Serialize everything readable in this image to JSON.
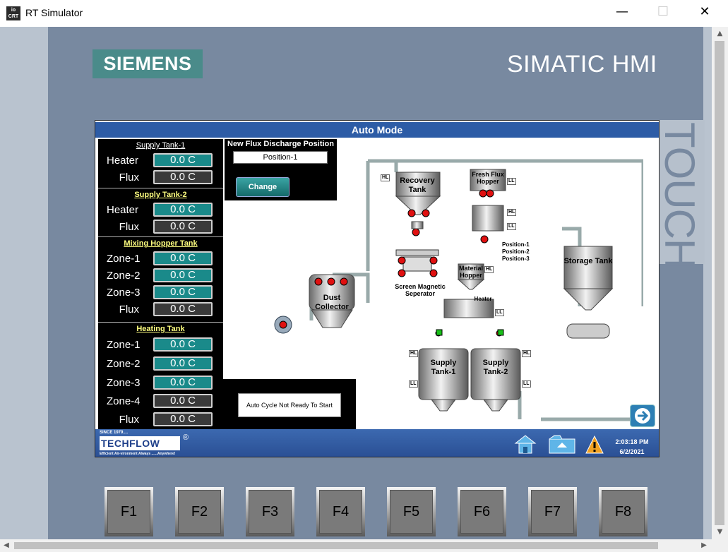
{
  "window": {
    "title": "RT Simulator",
    "icon_text": "ioCRT",
    "minimize": "—",
    "maximize": "☐",
    "close": "✕"
  },
  "brand": {
    "siemens": "SIEMENS",
    "simatic": "SIMATIC HMI",
    "touch": "TOUCH"
  },
  "screen": {
    "title": "Auto Mode",
    "sections": [
      {
        "heading": "Supply Tank-1",
        "rows": [
          {
            "label": "Heater",
            "value": "0.0 C",
            "style": "teal"
          },
          {
            "label": "Flux",
            "value": "0.0 C",
            "style": "gray"
          }
        ]
      },
      {
        "heading": "Supply Tank-2",
        "rows": [
          {
            "label": "Heater",
            "value": "0.0 C",
            "style": "teal"
          },
          {
            "label": "Flux",
            "value": "0.0 C",
            "style": "gray"
          }
        ]
      },
      {
        "heading": "Mixing Hopper Tank",
        "rows": [
          {
            "label": "Zone-1",
            "value": "0.0 C",
            "style": "teal"
          },
          {
            "label": "Zone-2",
            "value": "0.0 C",
            "style": "teal"
          },
          {
            "label": "Zone-3",
            "value": "0.0 C",
            "style": "teal"
          },
          {
            "label": "Flux",
            "value": "0.0 C",
            "style": "gray"
          }
        ]
      },
      {
        "heading": "Heating Tank",
        "rows": [
          {
            "label": "Zone-1",
            "value": "0.0 C",
            "style": "teal"
          },
          {
            "label": "Zone-2",
            "value": "0.0 C",
            "style": "teal"
          },
          {
            "label": "Zone-3",
            "value": "0.0 C",
            "style": "teal"
          },
          {
            "label": "Zone-4",
            "value": "0.0 C",
            "style": "gray"
          },
          {
            "label": "Flux",
            "value": "0.0 C",
            "style": "gray"
          }
        ]
      }
    ],
    "flux_discharge": {
      "title": "New Flux Discharge Position",
      "position": "Position-1",
      "button": "Change"
    },
    "auto_cycle": {
      "message": "Auto Cycle Not Ready To Start"
    },
    "diagram": {
      "recovery_tank": "Recovery Tank",
      "fresh_flux_hopper": "Fresh Flux Hopper",
      "screen_magnetic": "Screen Magnetic Seperator",
      "material_hopper": "Material Hopper",
      "dust_collector": "Dust Collector",
      "storage_tank": "Storage Tank",
      "supply_tank_1": "Supply Tank-1",
      "supply_tank_2": "Supply Tank-2",
      "positions": [
        "Position-1",
        "Position-2",
        "Position-3"
      ],
      "heater": "Heater",
      "tags": {
        "hl": "HL",
        "ll": "LL"
      }
    },
    "footer": {
      "since": "SINCE 1979....",
      "logo": "TECHFLOW",
      "reg": "®",
      "tagline": "Efficient Air-vironment   Always ......Anywhere!",
      "time": "2:03:18 PM",
      "date": "6/2/2021"
    }
  },
  "function_keys": [
    "F1",
    "F2",
    "F3",
    "F4",
    "F5",
    "F6",
    "F7",
    "F8"
  ],
  "colors": {
    "panel": "#7889a0",
    "title_bar": "#2d5ca6",
    "teal_value": "#1a8a8a",
    "siemens": "#4a8b8a"
  }
}
